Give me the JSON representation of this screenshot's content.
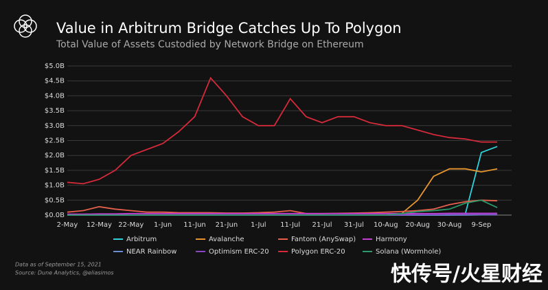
{
  "chart_data": {
    "type": "line",
    "title": "Value in Arbitrum Bridge Catches Up To Polygon",
    "subtitle": "Total Value of Assets Custodied by Network Bridge on Ethereum",
    "categories": [
      "2-May",
      null,
      "12-May",
      null,
      "22-May",
      null,
      "1-Jun",
      null,
      "11-Jun",
      null,
      "21-Jun",
      null,
      "1-Jul",
      null,
      "11-Jul",
      null,
      "21-Jul",
      null,
      "31-Jul",
      null,
      "10-Aug",
      null,
      "20-Aug",
      null,
      "30-Aug",
      null,
      "9-Sep",
      null
    ],
    "series": [
      {
        "name": "Arbitrum",
        "color": "#2fd3da",
        "values": [
          0,
          0,
          0,
          0,
          0,
          0,
          0,
          0,
          0,
          0,
          0,
          0,
          0,
          0,
          0,
          0,
          0,
          0,
          0,
          0,
          0,
          0,
          0,
          0,
          0,
          0.05,
          2.1,
          2.3
        ]
      },
      {
        "name": "Avalanche",
        "color": "#e8952e",
        "values": [
          0,
          0,
          0,
          0,
          0,
          0,
          0,
          0,
          0,
          0,
          0,
          0,
          0,
          0,
          0,
          0,
          0,
          0,
          0,
          0,
          0,
          0.05,
          0.5,
          1.3,
          1.55,
          1.55,
          1.45,
          1.55
        ]
      },
      {
        "name": "Fantom (AnySwap)",
        "color": "#e8604c",
        "values": [
          0.1,
          0.15,
          0.28,
          0.2,
          0.15,
          0.1,
          0.1,
          0.08,
          0.08,
          0.08,
          0.07,
          0.07,
          0.08,
          0.1,
          0.15,
          0.05,
          0.05,
          0.06,
          0.07,
          0.08,
          0.1,
          0.12,
          0.15,
          0.2,
          0.35,
          0.45,
          0.5,
          0.48
        ]
      },
      {
        "name": "Harmony",
        "color": "#c43fd6",
        "values": [
          0.03,
          0.03,
          0.04,
          0.04,
          0.05,
          0.05,
          0.05,
          0.05,
          0.05,
          0.05,
          0.05,
          0.05,
          0.05,
          0.05,
          0.05,
          0.05,
          0.05,
          0.05,
          0.05,
          0.05,
          0.05,
          0.05,
          0.05,
          0.05,
          0.06,
          0.06,
          0.06,
          0.06
        ]
      },
      {
        "name": "NEAR Rainbow",
        "color": "#6c8cd5",
        "values": [
          0,
          0,
          0,
          0,
          0,
          0,
          0,
          0,
          0,
          0,
          0,
          0,
          0,
          0,
          0,
          0,
          0,
          0,
          0,
          0,
          0,
          0,
          0,
          0,
          0,
          0,
          0.01,
          0.01
        ]
      },
      {
        "name": "Optimism ERC-20",
        "color": "#8a45c0",
        "values": [
          0,
          0,
          0,
          0,
          0,
          0,
          0,
          0,
          0,
          0,
          0,
          0,
          0,
          0,
          0,
          0,
          0,
          0,
          0,
          0,
          0,
          0.01,
          0.02,
          0.02,
          0.03,
          0.03,
          0.03,
          0.03
        ]
      },
      {
        "name": "Polygon ERC-20",
        "color": "#d42a3a",
        "values": [
          1.1,
          1.05,
          1.2,
          1.5,
          2.0,
          2.2,
          2.4,
          2.8,
          3.3,
          4.6,
          4.0,
          3.3,
          3.0,
          3.0,
          3.9,
          3.3,
          3.1,
          3.3,
          3.3,
          3.1,
          3.0,
          3.0,
          2.85,
          2.7,
          2.6,
          2.55,
          2.45,
          2.45
        ]
      },
      {
        "name": "Solana (Wormhole)",
        "color": "#2a9a6a",
        "values": [
          0,
          0,
          0,
          0,
          0,
          0,
          0,
          0,
          0,
          0,
          0,
          0,
          0,
          0,
          0,
          0,
          0,
          0,
          0,
          0,
          0,
          0.05,
          0.12,
          0.15,
          0.2,
          0.4,
          0.5,
          0.25
        ]
      }
    ],
    "ylim": [
      0,
      5
    ],
    "yticks": [
      {
        "value": 0,
        "label": "$0.0B"
      },
      {
        "value": 0.5,
        "label": "$0.5B"
      },
      {
        "value": 1,
        "label": "$1.0B"
      },
      {
        "value": 1.5,
        "label": "$1.5B"
      },
      {
        "value": 2,
        "label": "$2.0B"
      },
      {
        "value": 2.5,
        "label": "$2.5B"
      },
      {
        "value": 3,
        "label": "$3.0B"
      },
      {
        "value": 3.5,
        "label": "$3.5B"
      },
      {
        "value": 4,
        "label": "$4.0B"
      },
      {
        "value": 4.5,
        "label": "$4.5B"
      },
      {
        "value": 5,
        "label": "$5.0B"
      }
    ],
    "grid": true,
    "notes": [
      "Data as of September 15, 2021",
      "Source: Dune Analytics, @eliasimos"
    ],
    "watermark": "快传号/火星财经"
  }
}
